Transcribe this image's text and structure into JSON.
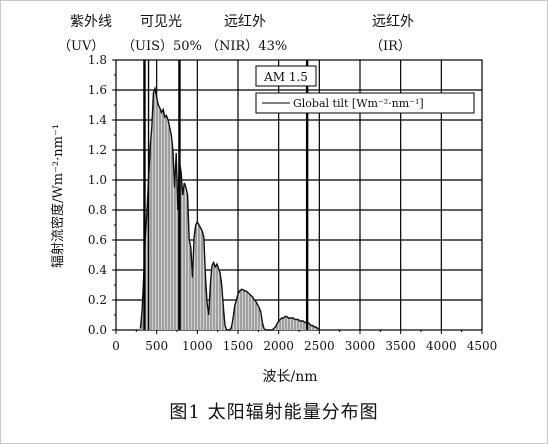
{
  "caption": "图1   太阳辐射能量分布图",
  "chart_data": {
    "type": "area",
    "title": "",
    "xlabel": "波长/nm",
    "ylabel": "辐射流密度/Wm⁻²·nm⁻¹",
    "xlim": [
      0,
      4500
    ],
    "ylim": [
      0,
      1.8
    ],
    "x_ticks": [
      "0",
      "500",
      "1000",
      "1500",
      "2000",
      "2500",
      "3000",
      "3500",
      "4000",
      "4500"
    ],
    "y_ticks": [
      "0.0",
      "0.2",
      "0.4",
      "0.6",
      "0.8",
      "1.0",
      "1.2",
      "1.4",
      "1.6",
      "1.8"
    ],
    "annotation": "AM 1.5",
    "legend": {
      "placement": "top-right",
      "entries": [
        "Global tilt [Wm⁻²·nm⁻¹]"
      ]
    },
    "bands": {
      "uv": {
        "label": "紫外线",
        "sub": "（UV）"
      },
      "visible": {
        "label": "可见光",
        "sub": "（UIS）50%"
      },
      "near_ir": {
        "label": "远红外",
        "sub": "（NIR）43%"
      },
      "far_ir": {
        "label": "远红外",
        "sub": "（IR）"
      }
    },
    "band_boundaries_nm": [
      350,
      400,
      780,
      2350
    ],
    "series": [
      {
        "x": [
          300,
          320,
          340,
          360,
          380,
          400,
          420,
          440,
          460,
          480,
          500,
          520,
          540,
          560,
          580,
          600,
          620,
          640,
          660,
          680,
          700,
          720,
          740,
          760,
          780,
          800,
          820,
          840,
          860,
          880,
          900,
          920,
          940,
          960,
          980,
          1000,
          1020,
          1040,
          1060,
          1080,
          1100,
          1120,
          1140,
          1160,
          1180,
          1200,
          1220,
          1240,
          1260,
          1280,
          1300,
          1320,
          1340,
          1360,
          1380,
          1400,
          1420,
          1440,
          1460,
          1480,
          1500,
          1520,
          1540,
          1560,
          1580,
          1600,
          1620,
          1640,
          1660,
          1680,
          1700,
          1720,
          1740,
          1760,
          1780,
          1800,
          1820,
          1840,
          1860,
          1880,
          1900,
          1920,
          1940,
          1960,
          1980,
          2000,
          2020,
          2040,
          2060,
          2080,
          2100,
          2120,
          2140,
          2160,
          2180,
          2200,
          2220,
          2240,
          2260,
          2280,
          2300,
          2320,
          2340,
          2360,
          2380,
          2400,
          2420,
          2440,
          2460,
          2480,
          2500
        ],
        "y": [
          0.01,
          0.12,
          0.35,
          0.62,
          0.78,
          1.0,
          1.22,
          1.35,
          1.58,
          1.61,
          1.55,
          1.5,
          1.48,
          1.45,
          1.47,
          1.42,
          1.43,
          1.4,
          1.35,
          1.3,
          1.2,
          0.95,
          1.18,
          0.8,
          1.12,
          1.05,
          0.9,
          0.98,
          0.95,
          0.9,
          0.6,
          0.55,
          0.35,
          0.62,
          0.7,
          0.72,
          0.7,
          0.68,
          0.66,
          0.62,
          0.35,
          0.18,
          0.1,
          0.3,
          0.43,
          0.45,
          0.42,
          0.44,
          0.41,
          0.38,
          0.3,
          0.15,
          0.03,
          0.0,
          0.0,
          0.0,
          0.02,
          0.08,
          0.16,
          0.2,
          0.24,
          0.26,
          0.27,
          0.27,
          0.26,
          0.26,
          0.25,
          0.24,
          0.23,
          0.22,
          0.2,
          0.19,
          0.17,
          0.15,
          0.12,
          0.05,
          0.01,
          0.0,
          0.0,
          0.0,
          0.0,
          0.0,
          0.01,
          0.02,
          0.04,
          0.06,
          0.07,
          0.08,
          0.08,
          0.09,
          0.09,
          0.08,
          0.08,
          0.08,
          0.08,
          0.07,
          0.07,
          0.07,
          0.06,
          0.06,
          0.06,
          0.05,
          0.05,
          0.05,
          0.04,
          0.03,
          0.03,
          0.02,
          0.02,
          0.01,
          0.0
        ]
      }
    ]
  }
}
